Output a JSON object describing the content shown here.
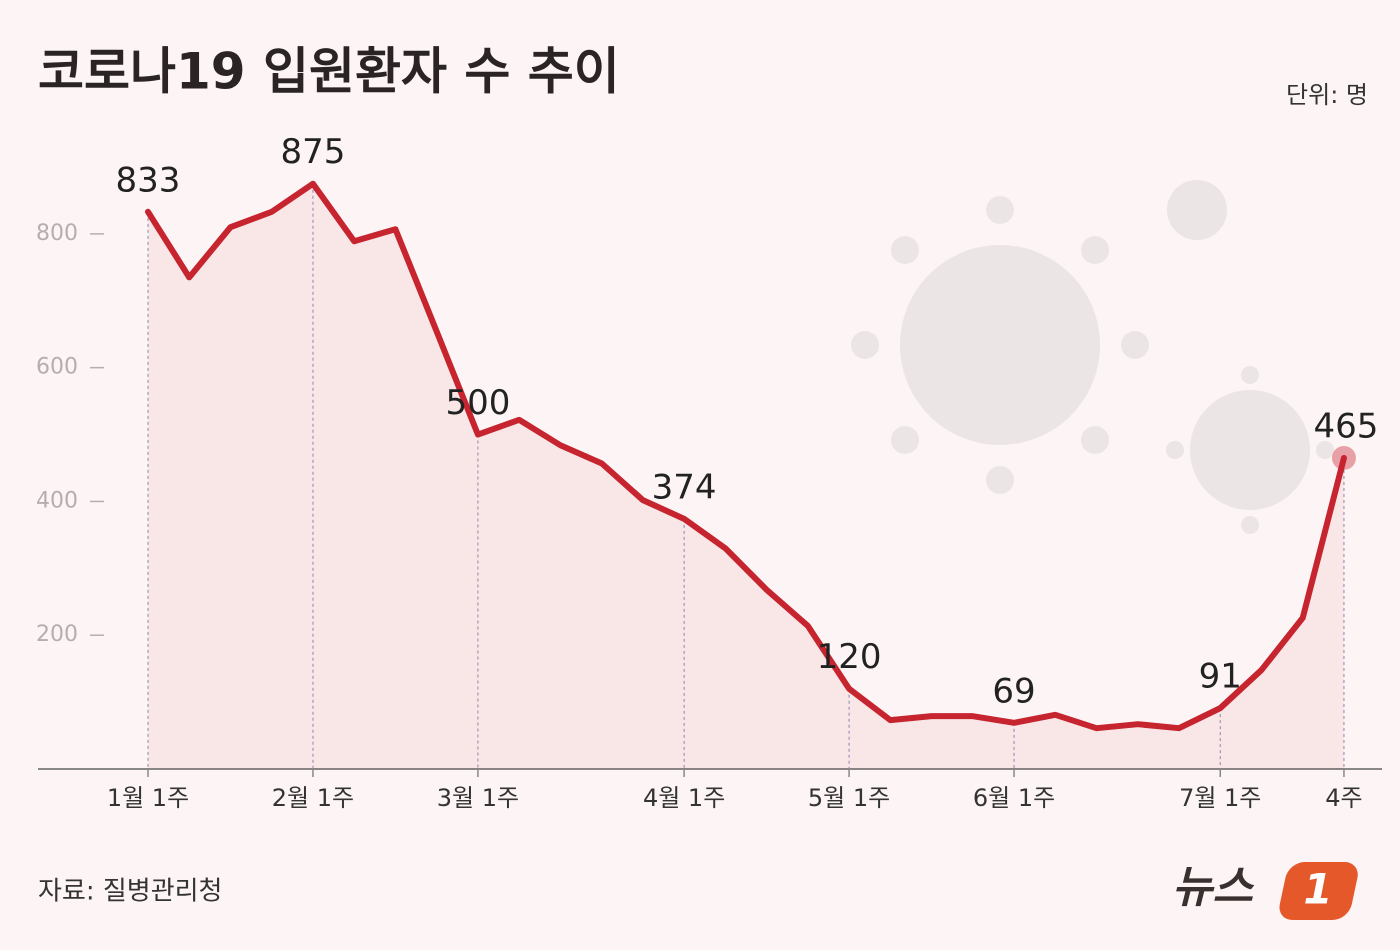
{
  "chart_data": {
    "type": "line",
    "title": "코로나19 입원환자 수 추이",
    "unit_label": "단위: 명",
    "source": "자료: 질병관리청",
    "categories": [
      "1월 1주",
      null,
      null,
      null,
      "2월 1주",
      null,
      null,
      null,
      "3월 1주",
      null,
      null,
      null,
      null,
      "4월 1주",
      null,
      null,
      null,
      "5월 1주",
      null,
      null,
      null,
      "6월 1주",
      null,
      null,
      null,
      null,
      "7월 1주",
      null,
      null,
      "4주"
    ],
    "series": [
      {
        "name": "입원환자 수",
        "color": "#c6242f",
        "values": [
          833,
          735,
          810,
          833,
          875,
          789,
          807,
          654,
          500,
          522,
          484,
          457,
          402,
          374,
          330,
          268,
          214,
          120,
          73,
          79,
          79,
          69,
          81,
          61,
          67,
          61,
          91,
          148,
          226,
          465
        ]
      }
    ],
    "ylim": [
      0,
      900
    ],
    "yticks": [
      200,
      400,
      600,
      800
    ],
    "grid": false
  },
  "logo": {
    "text": "뉴스",
    "badge": "1"
  }
}
